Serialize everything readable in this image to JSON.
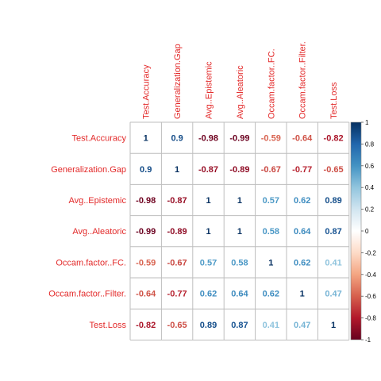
{
  "chart_data": {
    "type": "heatmap",
    "title": "",
    "variables": [
      "Test.Accuracy",
      "Generalization.Gap",
      "Avg..Epistemic",
      "Avg..Aleatoric",
      "Occam.factor..FC.",
      "Occam.factor..Filter.",
      "Test.Loss"
    ],
    "matrix": [
      [
        1,
        0.9,
        -0.98,
        -0.99,
        -0.59,
        -0.64,
        -0.82
      ],
      [
        0.9,
        1,
        -0.87,
        -0.89,
        -0.67,
        -0.77,
        -0.65
      ],
      [
        -0.98,
        -0.87,
        1,
        1,
        0.57,
        0.62,
        0.89
      ],
      [
        -0.99,
        -0.89,
        1,
        1,
        0.58,
        0.64,
        0.87
      ],
      [
        -0.59,
        -0.67,
        0.57,
        0.58,
        1,
        0.62,
        0.41
      ],
      [
        -0.64,
        -0.77,
        0.62,
        0.64,
        0.62,
        1,
        0.47
      ],
      [
        -0.82,
        -0.65,
        0.89,
        0.87,
        0.41,
        0.47,
        1
      ]
    ],
    "display_values": [
      [
        "1",
        "0.9",
        "-0.98",
        "-0.99",
        "-0.59",
        "-0.64",
        "-0.82"
      ],
      [
        "0.9",
        "1",
        "-0.87",
        "-0.89",
        "-0.67",
        "-0.77",
        "-0.65"
      ],
      [
        "-0.98",
        "-0.87",
        "1",
        "1",
        "0.57",
        "0.62",
        "0.89"
      ],
      [
        "-0.99",
        "-0.89",
        "1",
        "1",
        "0.58",
        "0.64",
        "0.87"
      ],
      [
        "-0.59",
        "-0.67",
        "0.57",
        "0.58",
        "1",
        "0.62",
        "0.41"
      ],
      [
        "-0.64",
        "-0.77",
        "0.62",
        "0.64",
        "0.62",
        "1",
        "0.47"
      ],
      [
        "-0.82",
        "-0.65",
        "0.89",
        "0.87",
        "0.41",
        "0.47",
        "1"
      ]
    ],
    "colorbar": {
      "range": [
        -1,
        1
      ],
      "ticks": [
        -1,
        -0.8,
        -0.6,
        -0.4,
        -0.2,
        0,
        0.2,
        0.4,
        0.6,
        0.8,
        1
      ],
      "tick_labels": [
        "-1",
        "-0.8",
        "-0.6",
        "-0.4",
        "-0.2",
        "0",
        "0.2",
        "0.4",
        "0.6",
        "0.8",
        "1"
      ]
    },
    "palette": [
      "#67001F",
      "#B2182B",
      "#D6604D",
      "#F4A582",
      "#FDDBC7",
      "#FFFFFF",
      "#D1E5F0",
      "#92C5DE",
      "#4393C3",
      "#2166AC",
      "#053061"
    ],
    "label_color": "#E32A2A",
    "grid_color": "#BEBEBE",
    "grid": true,
    "legend_placement": "right"
  }
}
